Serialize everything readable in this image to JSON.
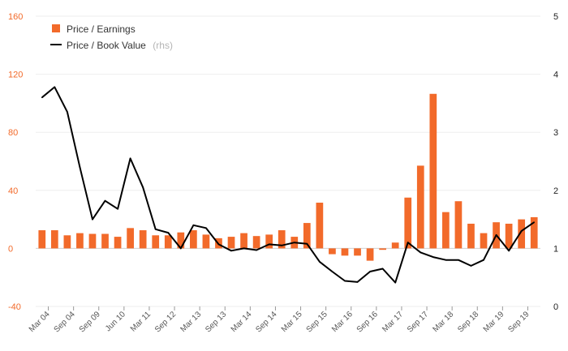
{
  "chart_data": {
    "type": "bar+line",
    "legend": {
      "placement": "top-left",
      "items": [
        {
          "label": "Price / Earnings",
          "note": "",
          "marker": "bar",
          "color": "#f26a2a"
        },
        {
          "label": "Price / Book Value",
          "note": "(rhs)",
          "marker": "line",
          "color": "#000000"
        }
      ]
    },
    "y_left": {
      "min": -40,
      "max": 160,
      "ticks": [
        -40,
        0,
        40,
        80,
        120,
        160
      ],
      "color": "#f26a2a"
    },
    "y_right": {
      "min": 0,
      "max": 5,
      "ticks": [
        0,
        1,
        2,
        3,
        4,
        5
      ],
      "color": "#222222"
    },
    "x_tick_labels": [
      "Mar 04",
      "Sep 04",
      "Sep 09",
      "Jun 10",
      "Mar 11",
      "Sep 12",
      "Mar 13",
      "Sep 13",
      "Mar 14",
      "Sep 14",
      "Mar 15",
      "Sep 15",
      "Mar 16",
      "Sep 16",
      "Mar 17",
      "Sep 17",
      "Mar 18",
      "Sep 18",
      "Mar 19",
      "Sep 19"
    ],
    "grid": "horizontal, light",
    "series": [
      {
        "name": "Price / Earnings",
        "type": "bar",
        "axis": "left",
        "color": "#f26a2a",
        "values": [
          12.5,
          12.5,
          9,
          10.5,
          10,
          10,
          8,
          14,
          12.5,
          9,
          9,
          11,
          12.5,
          9.5,
          7,
          8,
          10.5,
          8.5,
          9.5,
          12.5,
          8,
          17.5,
          31.5,
          -4,
          -5,
          -5,
          -8.5,
          -1,
          4,
          35,
          57,
          106.5,
          25,
          32.5,
          17,
          10.5,
          18,
          17,
          20,
          21.5
        ]
      },
      {
        "name": "Price / Book Value",
        "type": "line",
        "axis": "right",
        "color": "#000000",
        "values": [
          3.6,
          3.78,
          3.35,
          2.4,
          1.5,
          1.82,
          1.68,
          2.55,
          2.05,
          1.33,
          1.27,
          1.0,
          1.4,
          1.35,
          1.07,
          0.96,
          1.0,
          0.97,
          1.07,
          1.05,
          1.1,
          1.08,
          0.77,
          0.6,
          0.44,
          0.42,
          0.6,
          0.65,
          0.41,
          1.1,
          0.93,
          0.85,
          0.8,
          0.8,
          0.7,
          0.8,
          1.23,
          0.96,
          1.3,
          1.45
        ]
      }
    ]
  }
}
